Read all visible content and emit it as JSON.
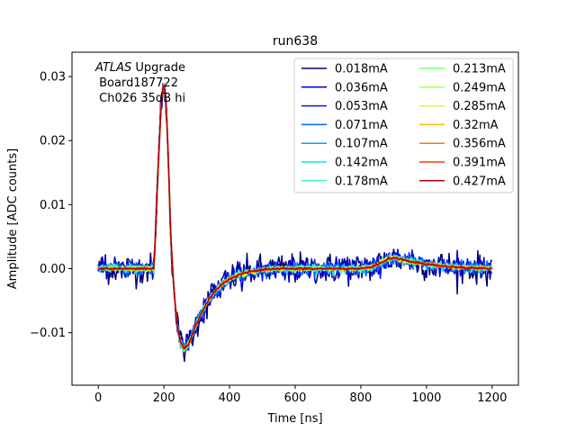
{
  "chart_data": {
    "type": "line",
    "title": "run638",
    "xlabel": "Time [ns]",
    "ylabel": "Amplitude [ADC counts]",
    "xlim": [
      -80,
      1280
    ],
    "ylim": [
      -0.0182,
      0.0338
    ],
    "xticks": [
      0,
      200,
      400,
      600,
      800,
      1000,
      1200
    ],
    "xtick_labels": [
      "0",
      "200",
      "400",
      "600",
      "800",
      "1000",
      "1200"
    ],
    "yticks": [
      -0.01,
      0.0,
      0.01,
      0.02,
      0.03
    ],
    "ytick_labels": [
      "−0.01",
      "0.00",
      "0.01",
      "0.02",
      "0.03"
    ],
    "grid": false,
    "legend_placement": "top-right",
    "legend_columns": 2,
    "annotation": {
      "line1_italic": "ATLAS",
      "line1_rest": " Upgrade",
      "line2": " Board187722",
      "line3": " Ch026 35dB hi"
    },
    "pulse_shape": {
      "x": [
        0,
        170,
        180,
        190,
        195,
        200,
        205,
        210,
        215,
        220,
        230,
        240,
        250,
        260,
        270,
        280,
        290,
        300,
        320,
        340,
        360,
        380,
        400,
        430,
        460,
        500,
        550,
        600,
        650,
        700,
        750,
        800,
        830,
        860,
        880,
        900,
        920,
        950,
        1000,
        1050,
        1100,
        1150,
        1200
      ],
      "y": [
        0.0,
        0.0,
        0.013,
        0.024,
        0.028,
        0.0285,
        0.027,
        0.022,
        0.015,
        0.006,
        -0.003,
        -0.0085,
        -0.0115,
        -0.0125,
        -0.0122,
        -0.0112,
        -0.0098,
        -0.0085,
        -0.0063,
        -0.0046,
        -0.0033,
        -0.0023,
        -0.0016,
        -0.0009,
        -0.0005,
        -0.0002,
        0.0,
        0.0,
        0.0,
        0.0,
        0.0,
        0.0,
        0.0002,
        0.0009,
        0.0015,
        0.0017,
        0.0015,
        0.0011,
        0.0007,
        0.0004,
        0.0002,
        0.0001,
        0.0
      ]
    },
    "series": [
      {
        "name": "0.018mA",
        "color": "#00007f",
        "noise": 0.0012
      },
      {
        "name": "0.036mA",
        "color": "#0000d2",
        "noise": 0.0008
      },
      {
        "name": "0.053mA",
        "color": "#0014ff",
        "noise": 0.0006
      },
      {
        "name": "0.071mA",
        "color": "#0064ff",
        "noise": 0.0005
      },
      {
        "name": "0.107mA",
        "color": "#00a4ff",
        "noise": 0.0004
      },
      {
        "name": "0.142mA",
        "color": "#12e4e4",
        "noise": 0.0003
      },
      {
        "name": "0.178mA",
        "color": "#45ffb2",
        "noise": 0.00025
      },
      {
        "name": "0.213mA",
        "color": "#7cff7a",
        "noise": 0.0002
      },
      {
        "name": "0.249mA",
        "color": "#b2ff45",
        "noise": 0.0002
      },
      {
        "name": "0.285mA",
        "color": "#e4f612",
        "noise": 0.00015
      },
      {
        "name": "0.32mA",
        "color": "#ffb900",
        "noise": 0.00015
      },
      {
        "name": "0.356mA",
        "color": "#ff7a00",
        "noise": 0.0001
      },
      {
        "name": "0.391mA",
        "color": "#ff3b00",
        "noise": 0.0001
      },
      {
        "name": "0.427mA",
        "color": "#b20000",
        "noise": 0.0001
      }
    ]
  }
}
